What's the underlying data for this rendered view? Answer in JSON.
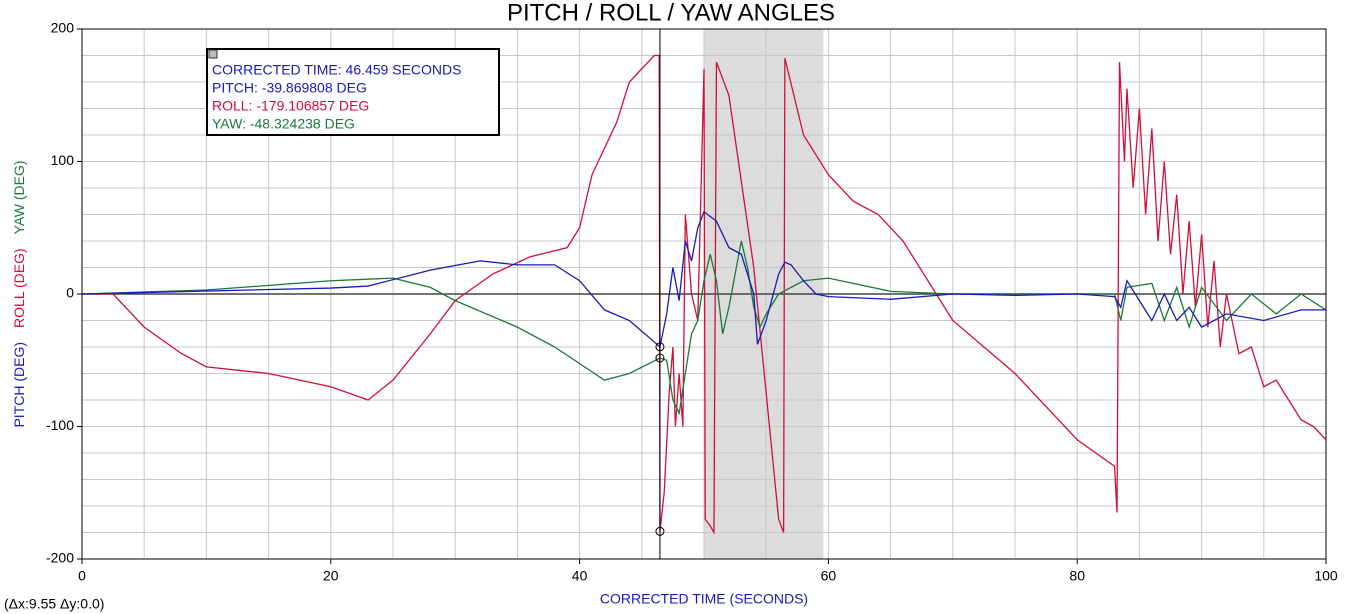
{
  "chart_data": {
    "type": "line",
    "title": "PITCH / ROLL / YAW ANGLES",
    "x_label": "CORRECTED TIME (SECONDS)",
    "y_labels": [
      {
        "text": "PITCH (DEG)",
        "color": "#1a1ab8"
      },
      {
        "text": "ROLL (DEG)",
        "color": "#d0103a"
      },
      {
        "text": "YAW (DEG)",
        "color": "#1a7a3a"
      }
    ],
    "xlim": [
      0,
      100
    ],
    "ylim": [
      -200,
      200
    ],
    "xticks": [
      0,
      20,
      40,
      60,
      80,
      100
    ],
    "yticks": [
      -200,
      -100,
      0,
      100,
      200
    ],
    "xgrid": [
      5,
      10,
      15,
      20,
      25,
      30,
      35,
      40,
      45,
      50,
      55,
      60,
      65,
      70,
      75,
      80,
      85,
      90,
      95
    ],
    "ygrid": [
      -180,
      -160,
      -140,
      -120,
      -100,
      -80,
      -60,
      -40,
      -20,
      20,
      40,
      60,
      80,
      100,
      120,
      140,
      160,
      180
    ],
    "grid": true,
    "highlight": [
      50,
      59.6
    ],
    "cursor": {
      "x": 46.459,
      "pitch": -39.869808,
      "roll": -179.106857,
      "yaw": -48.324238
    },
    "tooltip": [
      {
        "text": "CORRECTED TIME: 46.459 SECONDS",
        "color": "#1a1ab8"
      },
      {
        "text": "PITCH: -39.869808 DEG",
        "color": "#1a1ab8"
      },
      {
        "text": "ROLL: -179.106857 DEG",
        "color": "#d0103a"
      },
      {
        "text": "YAW: -48.324238 DEG",
        "color": "#1a7a3a"
      }
    ],
    "delta_label": "(Δx:9.55 Δy:0.0)",
    "series": [
      {
        "name": "ROLL",
        "color": "#d0103a",
        "x": [
          0,
          2.5,
          5,
          8,
          10,
          15,
          20,
          23,
          25,
          28,
          30,
          33,
          36,
          39,
          40,
          41,
          43,
          44,
          46,
          46.4,
          46.459,
          46.8,
          47.2,
          47.5,
          47.7,
          48,
          48.3,
          48.5,
          49,
          49.5,
          50,
          50.1,
          50.5,
          50.8,
          51,
          52,
          54,
          56,
          56.4,
          56.5,
          58,
          60,
          62,
          64,
          66,
          70,
          75,
          80,
          83,
          83.2,
          83.4,
          83.8,
          84,
          84.5,
          85,
          85.5,
          86,
          86.5,
          87,
          87.5,
          88,
          88.5,
          89,
          89.5,
          90,
          90.5,
          91,
          91.5,
          92,
          93,
          94,
          95,
          96,
          97,
          98,
          99,
          100
        ],
        "values": [
          0,
          0,
          -25,
          -45,
          -55,
          -60,
          -70,
          -80,
          -65,
          -30,
          -5,
          15,
          28,
          35,
          50,
          90,
          130,
          160,
          180,
          180,
          -179.1,
          -150,
          -75,
          -40,
          -100,
          -60,
          -100,
          60,
          0,
          -20,
          170,
          -170,
          -175,
          -180,
          175,
          150,
          20,
          -170,
          -180,
          178,
          120,
          90,
          70,
          60,
          40,
          -20,
          -60,
          -110,
          -130,
          -165,
          175,
          100,
          155,
          80,
          140,
          60,
          125,
          40,
          100,
          30,
          75,
          0,
          55,
          -10,
          45,
          -25,
          25,
          -40,
          0,
          -45,
          -40,
          -70,
          -65,
          -80,
          -95,
          -100,
          -110
        ]
      },
      {
        "name": "YAW",
        "color": "#1a7a3a",
        "x": [
          0,
          10,
          20,
          25,
          28,
          30,
          35,
          38,
          42,
          44,
          46.459,
          47,
          47.5,
          48,
          48.5,
          49,
          49.5,
          50,
          50.5,
          51,
          51.5,
          52,
          53,
          53.5,
          54,
          54.5,
          55,
          56,
          58,
          60,
          65,
          70,
          80,
          83,
          83.5,
          84,
          86,
          87,
          88,
          89,
          90,
          92,
          94,
          96,
          98,
          100
        ],
        "values": [
          0,
          3,
          10,
          12,
          5,
          -5,
          -25,
          -40,
          -65,
          -60,
          -48.32,
          -50,
          -80,
          -90,
          -60,
          -30,
          -20,
          10,
          30,
          10,
          -30,
          -10,
          40,
          20,
          -10,
          -25,
          -15,
          0,
          10,
          12,
          2,
          0,
          0,
          0,
          -20,
          5,
          8,
          -20,
          5,
          -25,
          5,
          -20,
          0,
          -15,
          0,
          -12
        ]
      },
      {
        "name": "PITCH",
        "color": "#1a1ab8",
        "x": [
          0,
          20,
          23,
          28,
          32,
          35,
          38,
          40,
          42,
          44,
          46.459,
          47,
          47.5,
          48,
          48.5,
          49,
          49.5,
          50,
          51,
          52,
          53,
          54,
          54.3,
          55,
          56,
          56.5,
          57,
          58,
          59,
          60,
          65,
          70,
          75,
          80,
          83,
          83.5,
          84,
          85,
          86,
          87,
          88,
          89,
          90,
          92,
          95,
          98,
          100
        ],
        "values": [
          0,
          4.5,
          6,
          18,
          25,
          22,
          22,
          10,
          -12,
          -20,
          -39.87,
          -15,
          20,
          -5,
          40,
          25,
          50,
          62,
          55,
          35,
          30,
          0,
          -38,
          -20,
          15,
          24,
          22,
          10,
          0,
          -2,
          -4,
          0,
          -1,
          0,
          -2,
          -10,
          10,
          -5,
          -20,
          0,
          -20,
          -10,
          -25,
          -15,
          -20,
          -12,
          -12
        ]
      }
    ]
  }
}
